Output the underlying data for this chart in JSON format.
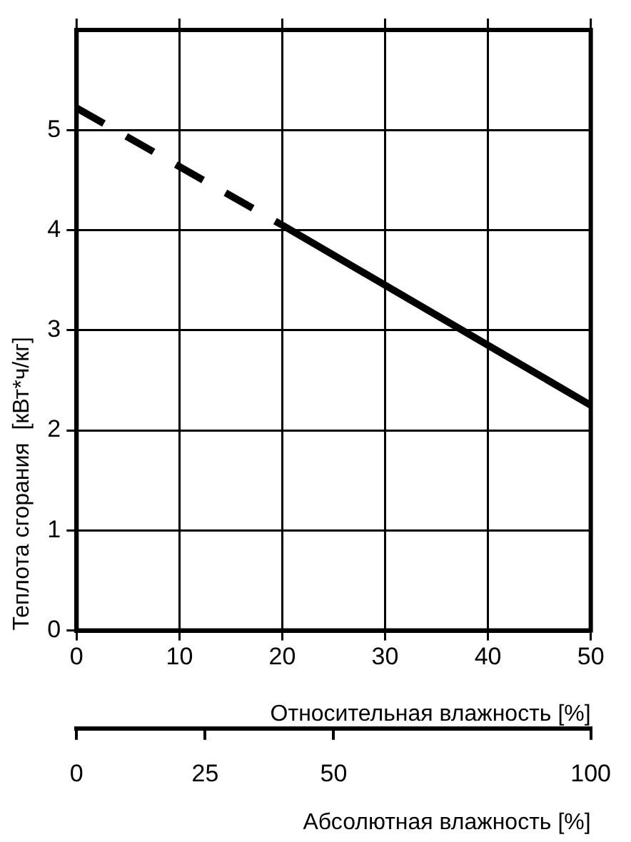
{
  "chart_data": {
    "type": "line",
    "xlabel": "Относительная влажность [%]",
    "x2label": "Абсолютная влажность [%]",
    "ylabel": "Теплота сгорания  [кВт*ч/кг]",
    "xlim": [
      0,
      50
    ],
    "xticks": [
      0,
      10,
      20,
      30,
      40,
      50
    ],
    "x2lim": [
      0,
      100
    ],
    "x2ticks": [
      0,
      25,
      50,
      100
    ],
    "ylim": [
      0,
      6
    ],
    "yticks": [
      0,
      1,
      2,
      3,
      4,
      5
    ],
    "grid": true,
    "marker": "none",
    "series": [
      {
        "x": [
          0,
          20
        ],
        "values": [
          5.22,
          4.05
        ],
        "color": "#000000",
        "line_style": "dashed"
      },
      {
        "x": [
          20,
          50
        ],
        "values": [
          4.05,
          2.25
        ],
        "color": "#000000",
        "line_style": "solid"
      }
    ]
  }
}
